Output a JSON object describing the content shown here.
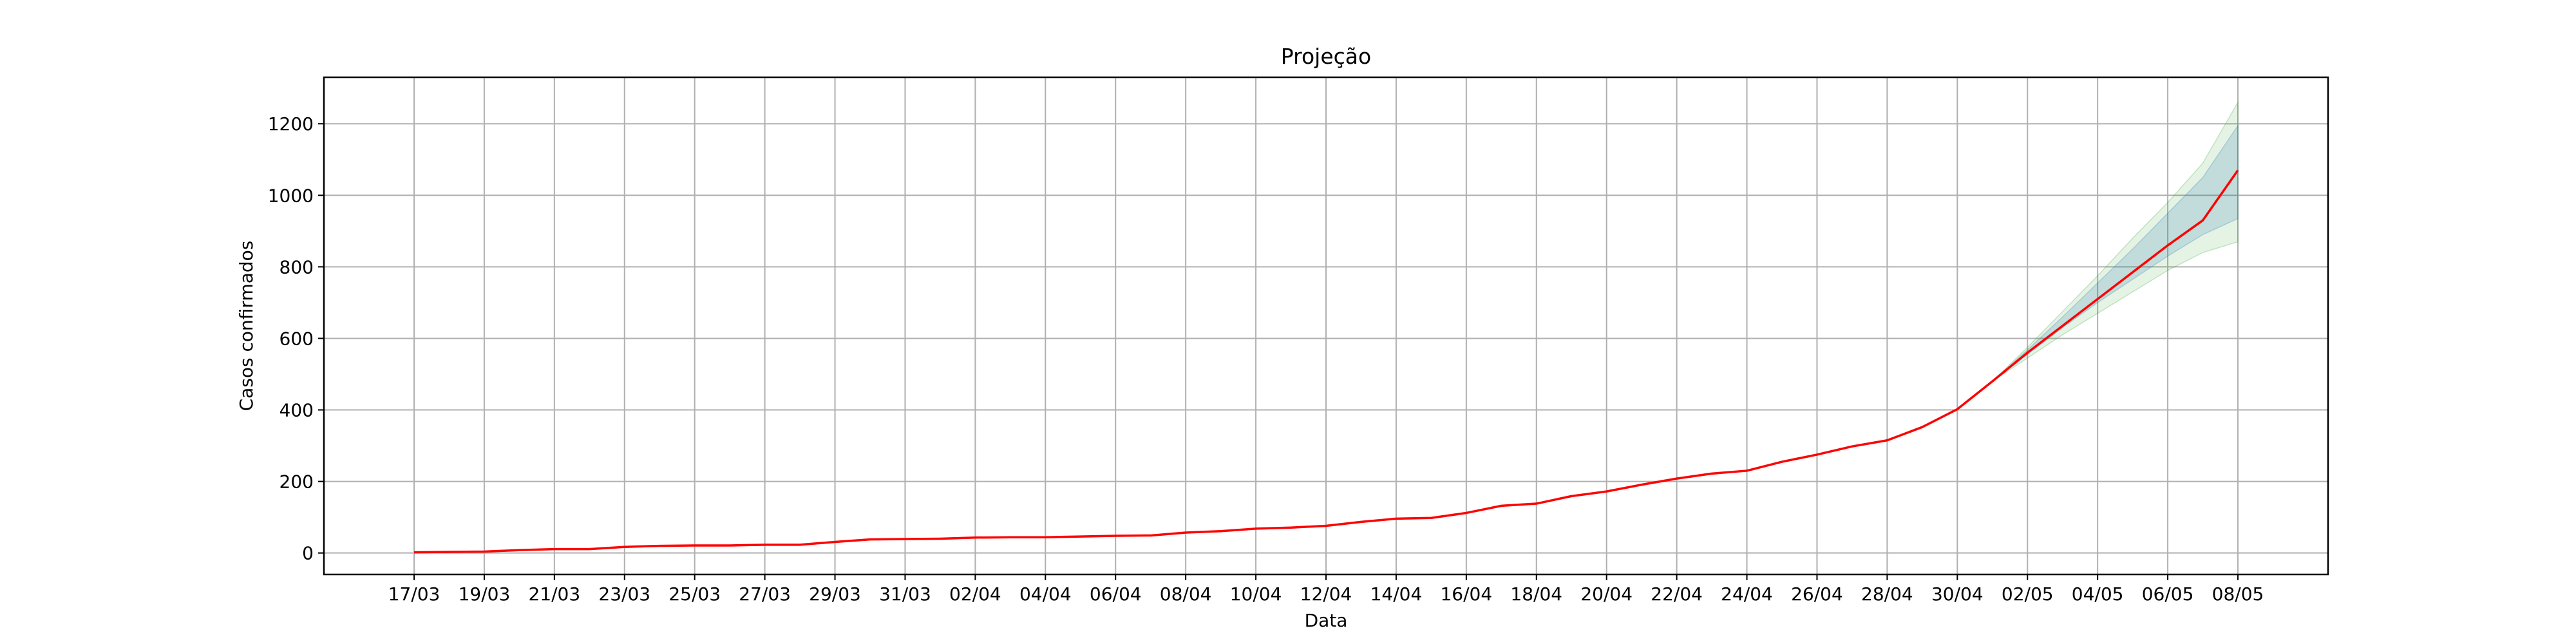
{
  "chart_data": {
    "type": "line",
    "title": "Projeção",
    "xlabel": "Data",
    "ylabel": "Casos confirmados",
    "grid": true,
    "legend": "none",
    "ylim": [
      -60,
      1330
    ],
    "yticks": [
      0,
      200,
      400,
      600,
      800,
      1000,
      1200
    ],
    "x": [
      "17/03",
      "18/03",
      "19/03",
      "20/03",
      "21/03",
      "22/03",
      "23/03",
      "24/03",
      "25/03",
      "26/03",
      "27/03",
      "28/03",
      "29/03",
      "30/03",
      "31/03",
      "01/04",
      "02/04",
      "03/04",
      "04/04",
      "05/04",
      "06/04",
      "07/04",
      "08/04",
      "09/04",
      "10/04",
      "11/04",
      "12/04",
      "13/04",
      "14/04",
      "15/04",
      "16/04",
      "17/04",
      "18/04",
      "19/04",
      "20/04",
      "21/04",
      "22/04",
      "23/04",
      "24/04",
      "25/04",
      "26/04",
      "27/04",
      "28/04",
      "29/04",
      "30/04",
      "01/05",
      "02/05",
      "03/05",
      "04/05",
      "05/05",
      "06/05",
      "07/05",
      "08/05"
    ],
    "xticks": [
      "17/03",
      "19/03",
      "21/03",
      "23/03",
      "25/03",
      "27/03",
      "29/03",
      "31/03",
      "02/04",
      "04/04",
      "06/04",
      "08/04",
      "10/04",
      "12/04",
      "14/04",
      "16/04",
      "18/04",
      "20/04",
      "22/04",
      "24/04",
      "26/04",
      "28/04",
      "30/04",
      "02/05",
      "04/05",
      "06/05",
      "08/05"
    ],
    "series": [
      {
        "color": "#ff0000",
        "values": [
          2,
          3,
          4,
          8,
          11,
          11,
          17,
          20,
          21,
          21,
          23,
          23,
          31,
          38,
          39,
          40,
          43,
          44,
          44,
          46,
          48,
          49,
          57,
          61,
          68,
          71,
          76,
          87,
          96,
          98,
          112,
          132,
          138,
          159,
          172,
          191,
          208,
          222,
          230,
          255,
          275,
          298,
          315,
          352,
          402,
          480,
          560,
          635,
          710,
          785,
          860,
          930,
          1070
        ]
      }
    ],
    "bands": [
      {
        "name": "outer",
        "color": "#2ca02c",
        "opacity": 0.12,
        "start_index": 45,
        "lower": [
          480,
          545,
          610,
          670,
          730,
          790,
          840,
          870
        ],
        "upper": [
          480,
          575,
          675,
          775,
          880,
          980,
          1090,
          1260
        ]
      },
      {
        "name": "inner",
        "color": "#1f77b4",
        "opacity": 0.18,
        "start_index": 45,
        "lower": [
          480,
          555,
          630,
          700,
          765,
          830,
          890,
          935
        ],
        "upper": [
          480,
          568,
          660,
          755,
          850,
          950,
          1050,
          1195
        ]
      }
    ]
  }
}
